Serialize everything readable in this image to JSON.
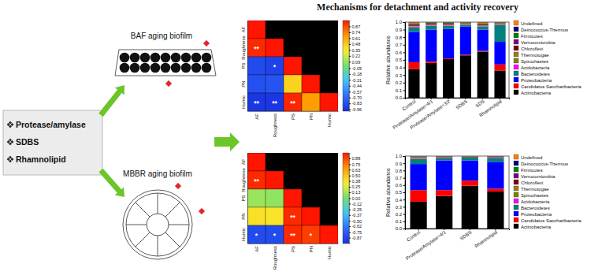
{
  "header": {
    "title": "Mechanisms for detachment and activity recovery"
  },
  "diagram": {
    "treatments": [
      "Protease/amylase",
      "SDBS",
      "Rhamnolipid"
    ],
    "reactors": [
      "BAF aging biofilm",
      "MBBR aging biofilm"
    ]
  },
  "chart_data": [
    {
      "type": "heatmap",
      "categories": [
        "AF",
        "Roughness",
        "PS",
        "PN",
        "Humic"
      ],
      "y_categories": [
        "AF",
        "Roughness",
        "PS",
        "PN",
        "Humic"
      ],
      "cells": [
        [
          1,
          null,
          null,
          null,
          null
        ],
        [
          0.95,
          1,
          null,
          null,
          null
        ],
        [
          -0.85,
          -0.9,
          1,
          null,
          null
        ],
        [
          -0.82,
          -0.8,
          0.45,
          1,
          null
        ],
        [
          -0.96,
          -0.96,
          0.96,
          0.65,
          1
        ]
      ],
      "significance": [
        [
          null,
          null,
          null,
          null,
          null
        ],
        [
          "**",
          null,
          null,
          null,
          null
        ],
        [
          null,
          "*",
          null,
          null,
          null
        ],
        [
          null,
          null,
          null,
          null,
          null
        ],
        [
          "**",
          "**",
          "**",
          null,
          null
        ]
      ],
      "colorbar": {
        "range": [
          -1,
          1
        ],
        "ticks": [
          0.87,
          0.74,
          0.61,
          0.48,
          0.35,
          0.22,
          0.09,
          -0.05,
          -0.18,
          -0.31,
          -0.44,
          -0.57,
          {
            "value": -0.7,
            "label": "-0.70"
          },
          -0.83,
          -0.96
        ]
      }
    },
    {
      "type": "heatmap",
      "categories": [
        "AF",
        "Roughness",
        "PS",
        "PN",
        "Humic"
      ],
      "y_categories": [
        "AF",
        "Roughness",
        "PS",
        "PN",
        "Humic"
      ],
      "cells": [
        [
          1,
          null,
          null,
          null,
          null
        ],
        [
          0.95,
          1,
          null,
          null,
          null
        ],
        [
          0.1,
          0.08,
          1,
          null,
          null
        ],
        [
          0.4,
          0.38,
          0.95,
          1,
          null
        ],
        [
          -0.85,
          -0.85,
          0.95,
          0.9,
          1
        ]
      ],
      "significance": [
        [
          null,
          null,
          null,
          null,
          null
        ],
        [
          "**",
          null,
          null,
          null,
          null
        ],
        [
          null,
          null,
          null,
          null,
          null
        ],
        [
          null,
          null,
          "**",
          null,
          null
        ],
        [
          "*",
          "*",
          "**",
          "*",
          null
        ]
      ],
      "colorbar": {
        "range": [
          -1,
          1
        ],
        "ticks": [
          0.88,
          0.75,
          0.63,
          {
            "value": 0.5,
            "label": "0.50"
          },
          0.38,
          0.25,
          0.13,
          {
            "value": 0,
            "label": "0.00"
          },
          -0.12,
          -0.25,
          -0.37,
          {
            "value": -0.5,
            "label": "-0.50"
          },
          -0.62,
          -0.75,
          -0.87
        ]
      }
    },
    {
      "type": "bar",
      "stacked": true,
      "legend": "right",
      "ylabel": "Relative abundance",
      "categories": [
        "Control",
        "Protease/Amylase=4/1",
        "Protease/Amylase=3/2",
        "SDBS",
        "SDS",
        "Rhamnolipid"
      ],
      "ylim": [
        0,
        1
      ],
      "yticks": [
        {
          "value": 0,
          "label": "0.0"
        },
        0.1,
        0.2,
        0.3,
        0.4,
        0.5,
        0.6,
        0.7,
        0.8,
        0.9,
        {
          "value": 1,
          "label": "1.0"
        }
      ],
      "series": [
        {
          "name": "Actinobacteria",
          "color": "#000000",
          "values": [
            0.38,
            0.46,
            0.51,
            0.56,
            0.61,
            0.36
          ]
        },
        {
          "name": "Candidatus Saccharibacteria",
          "color": "#ff0000",
          "values": [
            0.09,
            0.02,
            0.01,
            0.01,
            0.01,
            0.08
          ]
        },
        {
          "name": "Proteobacteria",
          "color": "#0000ff",
          "values": [
            0.4,
            0.42,
            0.39,
            0.37,
            0.28,
            0.3
          ]
        },
        {
          "name": "Bacteroidetes",
          "color": "#008080",
          "values": [
            0.06,
            0.05,
            0.04,
            0.02,
            0.04,
            0.22
          ]
        },
        {
          "name": "Acidobacteria",
          "color": "#ff00ff",
          "values": [
            0.01,
            0.005,
            0.005,
            0.005,
            0.005,
            0.005
          ]
        },
        {
          "name": "Spirochaetes",
          "color": "#808000",
          "values": [
            0.005,
            0.005,
            0.005,
            0.005,
            0.005,
            0.005
          ]
        },
        {
          "name": "Thermotogae",
          "color": "#9b7a1a",
          "values": [
            0.005,
            0.005,
            0.005,
            0.005,
            0.005,
            0.005
          ]
        },
        {
          "name": "Chloroflexi",
          "color": "#800000",
          "values": [
            0.01,
            0.005,
            0.005,
            0.005,
            0.005,
            0.005
          ]
        },
        {
          "name": "Verrucomicrobia",
          "color": "#800080",
          "values": [
            0.01,
            0.01,
            0.01,
            0.005,
            0.01,
            0.005
          ]
        },
        {
          "name": "Firmicutes",
          "color": "#008000",
          "values": [
            0.01,
            0.01,
            0.01,
            0.005,
            0.01,
            0.005
          ]
        },
        {
          "name": "Deinococcus-Thermus",
          "color": "#000080",
          "values": [
            0.005,
            0.005,
            0.005,
            0.005,
            0.005,
            0.005
          ]
        },
        {
          "name": "Undefined",
          "color": "#ff8000",
          "values": [
            0.015,
            0.005,
            0.005,
            0.005,
            0.015,
            0.005
          ]
        }
      ]
    },
    {
      "type": "bar",
      "stacked": true,
      "legend": "right",
      "ylabel": "Relative abundance",
      "categories": [
        "Control",
        "Protease/Amylase=4/1",
        "SDBS",
        "Rhamnolipid"
      ],
      "ylim": [
        0,
        1
      ],
      "yticks": [
        {
          "value": 0,
          "label": "0.0"
        },
        0.1,
        0.2,
        0.3,
        0.4,
        0.5,
        0.6,
        0.7,
        0.8,
        0.9,
        {
          "value": 1,
          "label": "1.0"
        }
      ],
      "series": [
        {
          "name": "Actinobacteria",
          "color": "#000000",
          "values": [
            0.37,
            0.45,
            0.59,
            0.51
          ]
        },
        {
          "name": "Candidatus Saccharibacteria",
          "color": "#ff0000",
          "values": [
            0.16,
            0.08,
            0.07,
            0.04
          ]
        },
        {
          "name": "Proteobacteria",
          "color": "#0000ff",
          "values": [
            0.36,
            0.41,
            0.28,
            0.37
          ]
        },
        {
          "name": "Bacteroidetes",
          "color": "#008080",
          "values": [
            0.07,
            0.03,
            0.04,
            0.05
          ]
        },
        {
          "name": "Acidobacteria",
          "color": "#ff00ff",
          "values": [
            0.005,
            0.005,
            0,
            0.005
          ]
        },
        {
          "name": "Spirochaetes",
          "color": "#808000",
          "values": [
            0.005,
            0,
            0,
            0
          ]
        },
        {
          "name": "Thermotogae",
          "color": "#9b7a1a",
          "values": [
            0.005,
            0,
            0,
            0
          ]
        },
        {
          "name": "Chloroflexi",
          "color": "#800000",
          "values": [
            0.005,
            0.005,
            0.005,
            0.005
          ]
        },
        {
          "name": "Verrucomicrobia",
          "color": "#800080",
          "values": [
            0.005,
            0.005,
            0.005,
            0.005
          ]
        },
        {
          "name": "Firmicutes",
          "color": "#008000",
          "values": [
            0.005,
            0.005,
            0.005,
            0.005
          ]
        },
        {
          "name": "Deinococcus-Thermus",
          "color": "#000080",
          "values": [
            0.005,
            0.005,
            0,
            0.005
          ]
        },
        {
          "name": "Undefined",
          "color": "#ff8000",
          "values": [
            0.005,
            0.005,
            0.005,
            0.005
          ]
        }
      ]
    }
  ]
}
